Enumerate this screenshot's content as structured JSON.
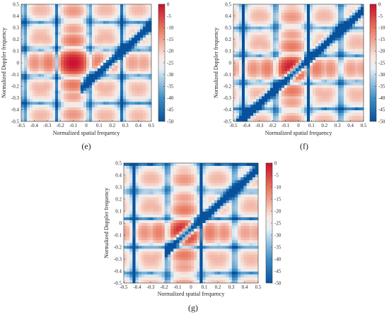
{
  "chart_data": [
    {
      "type": "heatmap",
      "panel_label": "(e)",
      "xlabel": "Normalized spatial frequency",
      "ylabel": "Normalized Doppler frequency",
      "xlim": [
        -0.5,
        0.5
      ],
      "ylim": [
        -0.5,
        0.5
      ],
      "xticks": [
        "-0.5",
        "-0.4",
        "-0.3",
        "-0.2",
        "-0.1",
        "0",
        "0.1",
        "0.2",
        "0.3",
        "0.4",
        "0.5"
      ],
      "yticks": [
        "-0.5",
        "-0.4",
        "-0.3",
        "-0.2",
        "-0.1",
        "0",
        "0.1",
        "0.2",
        "0.3",
        "0.4",
        "0.5"
      ],
      "colorbar": {
        "ticks": [
          "0",
          "-5",
          "-10",
          "-15",
          "-20",
          "-25",
          "-30",
          "-35",
          "-40",
          "-45",
          "-50"
        ],
        "range": [
          -50,
          0
        ],
        "colormap": "red-white-blue"
      },
      "clutter_ridge": {
        "slope": 1.0,
        "x_range": [
          -0.05,
          0.5
        ],
        "intercept": -0.18
      },
      "mainlobe": {
        "x": -0.1,
        "y": 0.0,
        "value_db": 0
      },
      "secondary_peaks_db": [
        {
          "x": 0.0,
          "y": -0.35,
          "value_db": -3
        }
      ],
      "grid": false
    },
    {
      "type": "heatmap",
      "panel_label": "(f)",
      "xlabel": "Normalized spatial frequency",
      "ylabel": "Normalized Doppler frequency",
      "xlim": [
        -0.5,
        0.5
      ],
      "ylim": [
        -0.5,
        0.5
      ],
      "xticks": [
        "-0.5",
        "-0.4",
        "-0.3",
        "-0.2",
        "-0.1",
        "0",
        "0.1",
        "0.2",
        "0.3",
        "0.4",
        "0.5"
      ],
      "yticks": [
        "-0.5",
        "-0.4",
        "-0.3",
        "-0.2",
        "-0.1",
        "0",
        "0.1",
        "0.2",
        "0.3",
        "0.4",
        "0.5"
      ],
      "colorbar": {
        "ticks": [
          "0",
          "-5",
          "-10",
          "-15",
          "-20",
          "-25",
          "-30",
          "-35",
          "-40",
          "-45",
          "-50"
        ],
        "range": [
          -50,
          0
        ],
        "colormap": "red-white-blue"
      },
      "clutter_ridge": {
        "slope": 1.0,
        "x_range": [
          -0.5,
          0.5
        ],
        "intercept": -0.05
      },
      "mainlobe": {
        "x": -0.05,
        "y": -0.05,
        "value_db": 0
      },
      "grid": false
    },
    {
      "type": "heatmap",
      "panel_label": "(g)",
      "xlabel": "Normalized spatial frequency",
      "ylabel": "Normalized Doppler frequency",
      "xlim": [
        -0.5,
        0.5
      ],
      "ylim": [
        -0.5,
        0.5
      ],
      "xticks": [
        "-0.5",
        "-0.4",
        "-0.3",
        "-0.2",
        "-0.1",
        "0",
        "0.1",
        "0.2",
        "0.3",
        "0.4",
        "0.5"
      ],
      "yticks": [
        "-0.5",
        "-0.4",
        "-0.3",
        "-0.2",
        "-0.1",
        "0",
        "0.1",
        "0.2",
        "0.3",
        "0.4",
        "0.5"
      ],
      "colorbar": {
        "ticks": [
          "0",
          "-5",
          "-10",
          "-15",
          "-20",
          "-25",
          "-30",
          "-35",
          "-40",
          "-45",
          "-50"
        ],
        "range": [
          -50,
          0
        ],
        "colormap": "red-white-blue"
      },
      "clutter_ridge": {
        "slope": 1.0,
        "x_range": [
          -0.2,
          0.5
        ],
        "intercept": -0.05
      },
      "mainlobe": {
        "x": -0.05,
        "y": -0.08,
        "value_db": 0
      },
      "grid": false
    }
  ]
}
